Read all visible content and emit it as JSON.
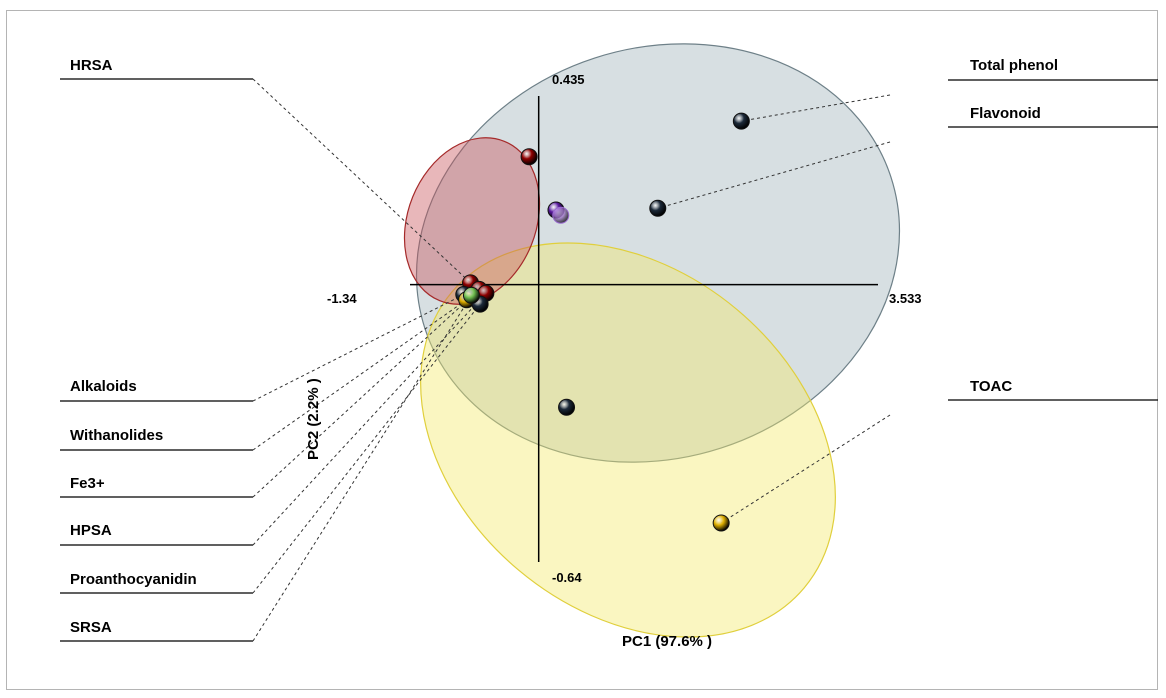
{
  "chart_data": {
    "type": "scatter",
    "xlabel": "PC1 (97.6% )",
    "ylabel": "PC2 (2.2% )",
    "x_range": [
      -1.34,
      3.533
    ],
    "y_range": [
      -0.64,
      0.435
    ],
    "tick_labels": {
      "x_min": "-1.34",
      "x_max": "3.533",
      "y_max": "0.435",
      "y_min": "-0.64"
    },
    "grid": false,
    "series": [
      {
        "name": "Total phenol",
        "x": 2.11,
        "y": 0.377,
        "color": "#1c2a3a"
      },
      {
        "name": "Flavonoid",
        "x": 1.24,
        "y": 0.176,
        "color": "#1c2a3a"
      },
      {
        "name": "TOAC",
        "x": 1.9,
        "y": -0.55,
        "color": "#e0b000"
      },
      {
        "name": "HRSA",
        "x": -0.71,
        "y": 0.004,
        "color": "#8e0000"
      },
      {
        "name": "Alkaloids",
        "x": -0.78,
        "y": -0.023,
        "color": "#1c2a3a"
      },
      {
        "name": "Withanolides",
        "x": -0.75,
        "y": -0.035,
        "color": "#e0b000"
      },
      {
        "name": "Fe3+",
        "x": -0.62,
        "y": -0.011,
        "color": "#8e0000"
      },
      {
        "name": "HPSA",
        "x": -0.55,
        "y": -0.02,
        "color": "#8e0000"
      },
      {
        "name": "Proanthocyanidin",
        "x": -0.61,
        "y": -0.045,
        "color": "#1c2a3a"
      },
      {
        "name": "SRSA",
        "x": -0.7,
        "y": -0.025,
        "color": "#6fbf50"
      }
    ],
    "extra_points": [
      {
        "x": -0.1,
        "y": 0.295,
        "color": "#8e0000"
      },
      {
        "x": 0.18,
        "y": 0.172,
        "color": "#5a1aa0"
      },
      {
        "x": 0.23,
        "y": 0.16,
        "color": "#b07fe0",
        "light": true
      },
      {
        "x": 0.29,
        "y": -0.283,
        "color": "#1c2a3a"
      }
    ],
    "ellipses": [
      {
        "color": "#9fb3ba",
        "stroke": "#6e8088",
        "opacity": 0.42
      },
      {
        "color": "#f3ea6c",
        "stroke": "#e0cf3c",
        "opacity": 0.42
      },
      {
        "color": "#c8535a",
        "stroke": "#a52a2a",
        "opacity": 0.42
      }
    ]
  }
}
